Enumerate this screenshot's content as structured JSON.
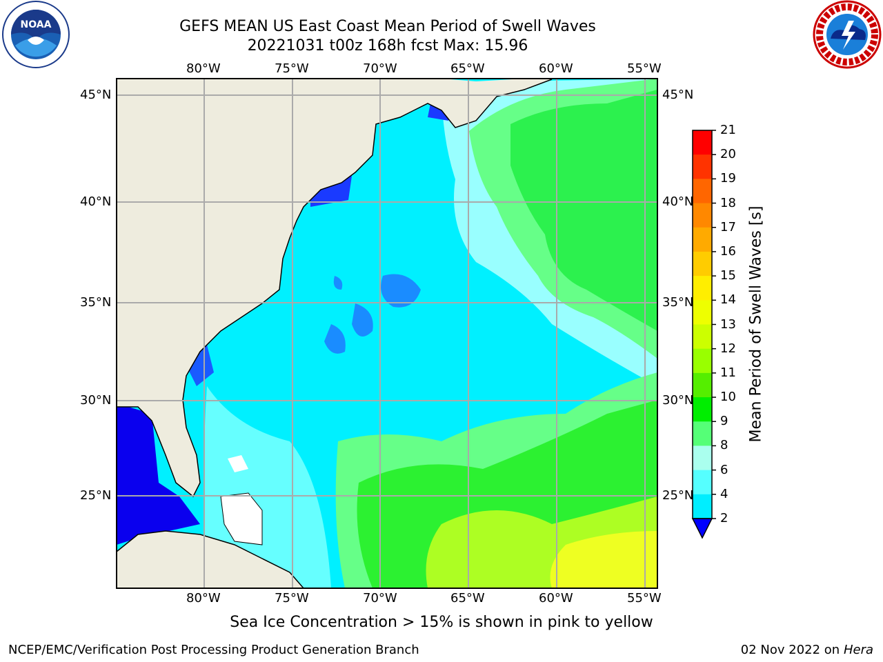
{
  "header": {
    "title_line1": "GEFS MEAN US East Coast Mean Period of Swell Waves",
    "title_line2": "20221031 t00z 168h fcst   Max: 15.96"
  },
  "logos": {
    "left": "noaa-logo",
    "right": "national-weather-service-logo"
  },
  "map": {
    "lon_labels": [
      "80°W",
      "75°W",
      "70°W",
      "65°W",
      "60°W",
      "55°W"
    ],
    "lat_labels": [
      "45°N",
      "40°N",
      "35°N",
      "30°N",
      "25°N"
    ],
    "colors": {
      "land": "#eeecde",
      "grid": "#aaaaaa",
      "coast": "#000000"
    }
  },
  "colorbar": {
    "label": "Mean Period of Swell Waves [s]",
    "ticks": [
      "21",
      "20",
      "19",
      "18",
      "17",
      "16",
      "15",
      "14",
      "13",
      "12",
      "11",
      "10",
      "9",
      "8",
      "6",
      "4",
      "2"
    ],
    "colors": [
      "#ff0000",
      "#ff3300",
      "#ff6600",
      "#ff8800",
      "#ffaa00",
      "#ffcc00",
      "#ffee00",
      "#eeff00",
      "#ccff00",
      "#99ff00",
      "#55ee00",
      "#00ee00",
      "#55ff77",
      "#aaffee",
      "#55ffff",
      "#00eeff",
      "#0088ff",
      "#0000ff"
    ]
  },
  "footer": {
    "ice_note": "Sea Ice Concentration > 15% is shown in pink to yellow",
    "credit": "NCEP/EMC/Verification Post Processing Product Generation Branch",
    "date": "02 Nov 2022 on",
    "host": "Hera"
  }
}
